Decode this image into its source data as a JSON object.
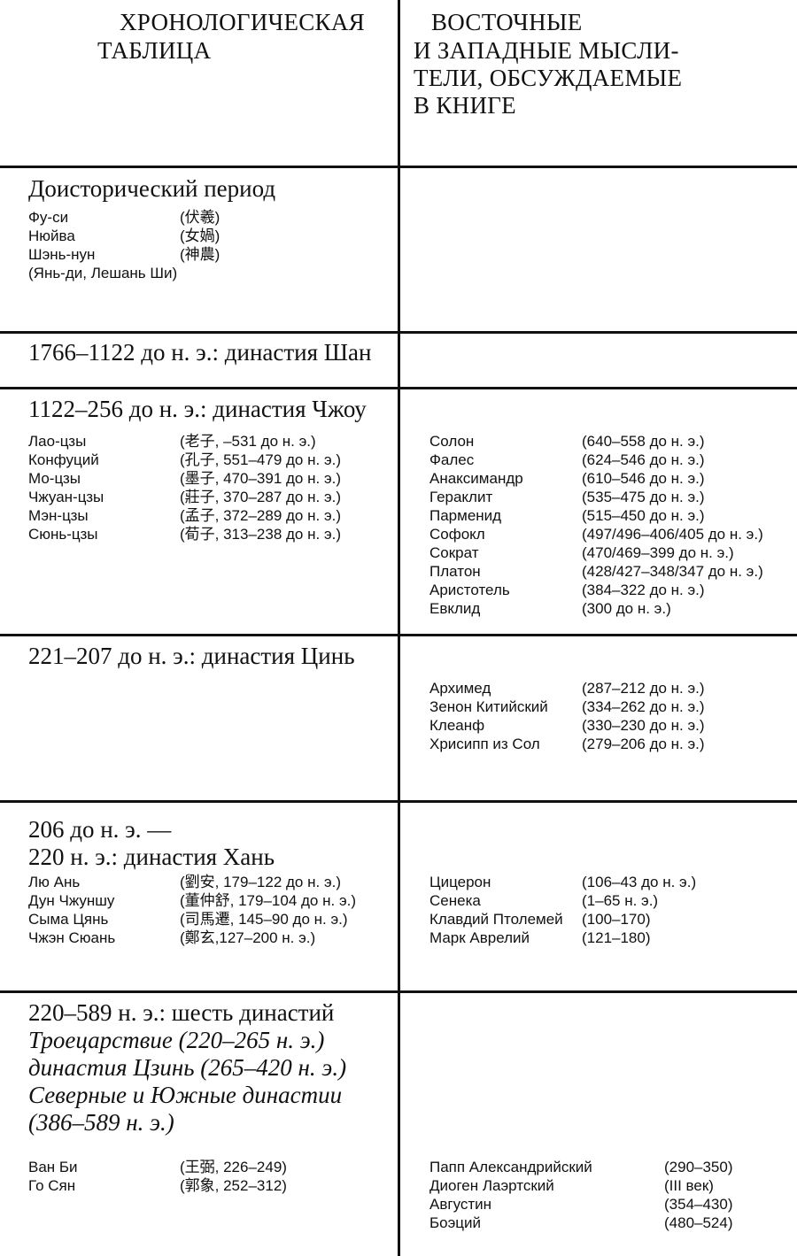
{
  "header": {
    "left": [
      "ХРОНОЛОГИЧЕСКАЯ",
      "ТАБЛИЦА"
    ],
    "right": [
      "ВОСТОЧНЫЕ",
      "И ЗАПАДНЫЕ МЫСЛИ-",
      "ТЕЛИ, ОБСУЖДАЕМЫЕ",
      "В КНИГЕ"
    ]
  },
  "sections": [
    {
      "title": [
        "Доисторический период"
      ],
      "left": [
        [
          "Фу-си",
          "(伏羲)"
        ],
        [
          "Нюйва",
          "(女媧)"
        ],
        [
          "Шэнь-нун",
          "(神農)"
        ],
        [
          "(Янь-ди, Лешань Ши)",
          ""
        ]
      ],
      "right": []
    },
    {
      "title": [
        "1766–1122 до н. э.: династия Шан"
      ],
      "left": [],
      "right": []
    },
    {
      "title": [
        "1122–256 до н. э.: династия Чжоу"
      ],
      "left": [
        [
          "Лао-цзы",
          "(老子, –531 до н. э.)"
        ],
        [
          "Конфуций",
          "(孔子, 551–479 до н. э.)"
        ],
        [
          "Мо-цзы",
          "(墨子, 470–391 до н. э.)"
        ],
        [
          "Чжуан-цзы",
          "(莊子, 370–287 до н. э.)"
        ],
        [
          "Мэн-цзы",
          "(孟子, 372–289 до н. э.)"
        ],
        [
          "Сюнь-цзы",
          "(荀子, 313–238 до н. э.)"
        ]
      ],
      "right": [
        [
          "Солон",
          "(640–558 до н. э.)"
        ],
        [
          "Фалес",
          "(624–546 до н. э.)"
        ],
        [
          "Анаксимандр",
          "(610–546 до н. э.)"
        ],
        [
          "Гераклит",
          "(535–475 до н. э.)"
        ],
        [
          "Парменид",
          "(515–450 до н. э.)"
        ],
        [
          "Софокл",
          "(497/496–406/405 до н. э.)"
        ],
        [
          "Сократ",
          "(470/469–399 до н. э.)"
        ],
        [
          "Платон",
          "(428/427–348/347 до н. э.)"
        ],
        [
          "Аристотель",
          "(384–322 до н. э.)"
        ],
        [
          "Евклид",
          "(300 до н. э.)"
        ]
      ]
    },
    {
      "title": [
        "221–207 до н. э.: династия Цинь"
      ],
      "left": [],
      "right": [
        [
          "Архимед",
          "(287–212 до н. э.)"
        ],
        [
          "Зенон Китийский",
          "(334–262 до н. э.)"
        ],
        [
          "Клеанф",
          "(330–230 до н. э.)"
        ],
        [
          "Хрисипп из Сол",
          "(279–206 до н. э.)"
        ]
      ]
    },
    {
      "title": [
        "206 до н. э. —",
        "220 н. э.: династия Хань"
      ],
      "left": [
        [
          "Лю Ань",
          "(劉安, 179–122 до н. э.)"
        ],
        [
          "Дун Чжуншу",
          "(董仲舒, 179–104 до н. э.)"
        ],
        [
          "Сыма Цянь",
          "(司馬遷, 145–90 до н. э.)"
        ],
        [
          "Чжэн Сюань",
          "(鄭玄,127–200 н. э.)"
        ]
      ],
      "right": [
        [
          "Цицерон",
          "(106–43 до н. э.)"
        ],
        [
          "Сенека",
          "(1–65 н. э.)"
        ],
        [
          "Клавдий Птолемей",
          "(100–170)"
        ],
        [
          "Марк Аврелий",
          "(121–180)"
        ]
      ]
    },
    {
      "title": [
        "220–589 н. э.: шесть династий"
      ],
      "subtitle": [
        "Троецарствие (220–265 н. э.)",
        "династия Цзинь (265–420 н. э.)",
        "Северные и Южные династии",
        "(386–589 н. э.)"
      ],
      "left": [
        [
          "Ван Би",
          "(王弼, 226–249)"
        ],
        [
          "Го Сян",
          "(郭象, 252–312)"
        ]
      ],
      "right": [
        [
          "Папп Александрийский",
          "(290–350)"
        ],
        [
          "Диоген Лаэртский",
          "(III век)"
        ],
        [
          "Августин",
          "(354–430)"
        ],
        [
          "Боэций",
          "(480–524)"
        ]
      ]
    }
  ]
}
